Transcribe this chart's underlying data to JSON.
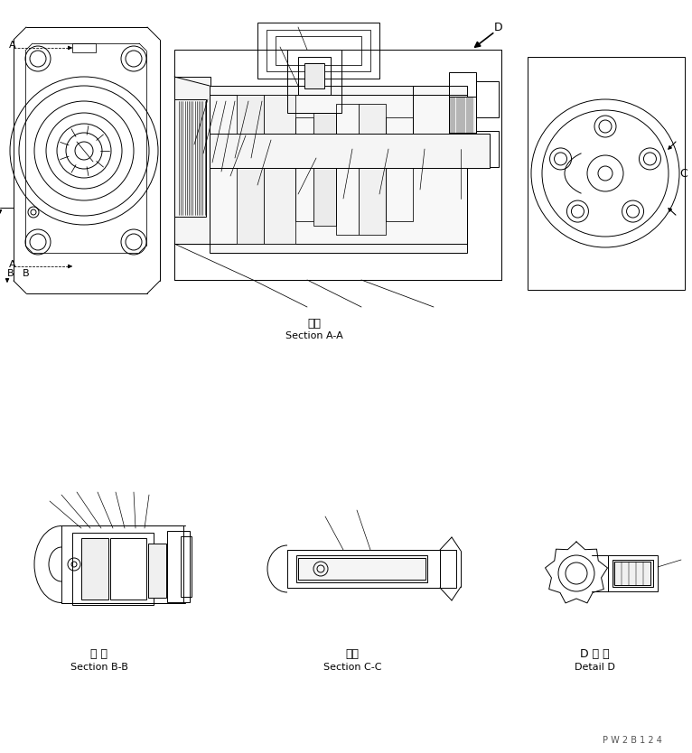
{
  "bg_color": "#ffffff",
  "line_color": "#000000",
  "fig_width": 7.66,
  "fig_height": 8.34,
  "dpi": 100,
  "watermark": "P W 2 B 1 2 4",
  "label_section_aa_jp": "断面",
  "label_section_aa": "Section A-A",
  "label_section_bb_jp": "断 面",
  "label_section_bb": "Section B-B",
  "label_section_cc_jp": "断面",
  "label_section_cc": "Section C-C",
  "label_detail_d_jp": "D 詳 細",
  "label_detail_d": "Detail D"
}
